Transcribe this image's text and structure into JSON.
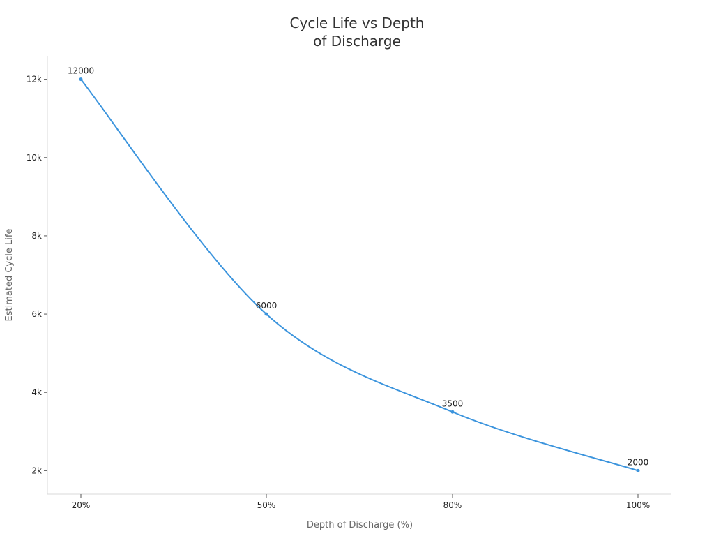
{
  "chart_data": {
    "type": "line",
    "title_lines": [
      "Cycle Life vs Depth",
      "of Discharge"
    ],
    "xlabel": "Depth of Discharge (%)",
    "ylabel": "Estimated Cycle Life",
    "categories": [
      "20%",
      "50%",
      "80%",
      "100%"
    ],
    "x": [
      20,
      50,
      80,
      100
    ],
    "y_ticks": [
      {
        "value": 2000,
        "label": "2k"
      },
      {
        "value": 4000,
        "label": "4k"
      },
      {
        "value": 6000,
        "label": "6k"
      },
      {
        "value": 8000,
        "label": "8k"
      },
      {
        "value": 10000,
        "label": "10k"
      },
      {
        "value": 12000,
        "label": "12k"
      }
    ],
    "ylim": [
      1400,
      12600
    ],
    "grid": false,
    "legend": "none",
    "series": [
      {
        "color": "#3b94dd",
        "values": [
          12000,
          6000,
          3500,
          2000
        ],
        "labels": [
          "12000",
          "6000",
          "3500",
          "2000"
        ]
      }
    ]
  }
}
